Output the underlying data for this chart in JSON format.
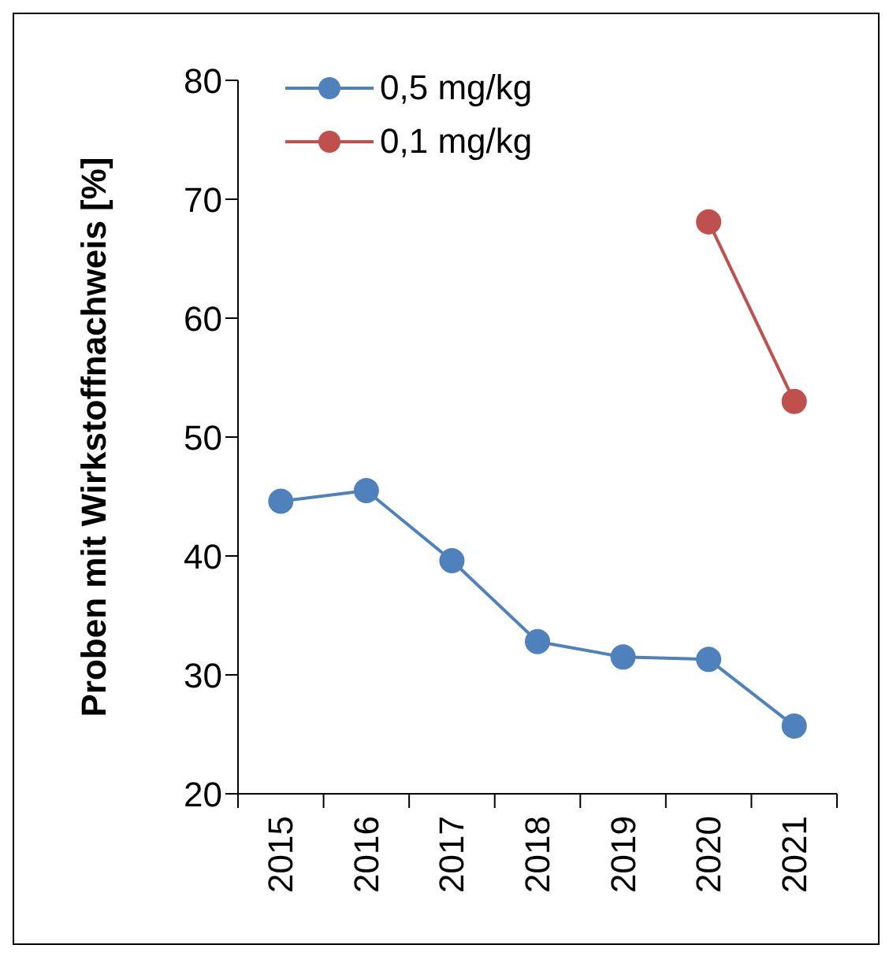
{
  "chart_data": {
    "type": "line",
    "ylabel": "Proben mit Wirkstoffnachweis [%]",
    "categories": [
      "2015",
      "2016",
      "2017",
      "2018",
      "2019",
      "2020",
      "2021"
    ],
    "series": [
      {
        "name": "0,5 mg/kg",
        "color": "#4f81bd",
        "values": [
          44.6,
          45.5,
          39.6,
          32.8,
          31.5,
          31.3,
          25.7
        ]
      },
      {
        "name": "0,1 mg/kg",
        "color": "#c0504d",
        "values": [
          null,
          null,
          null,
          null,
          null,
          68.1,
          53.0
        ]
      }
    ],
    "ylim": [
      20,
      80
    ],
    "yticks": [
      20,
      30,
      40,
      50,
      60,
      70,
      80
    ],
    "grid": false,
    "legend": "top left",
    "marker": "circle",
    "line_style": "solid"
  }
}
